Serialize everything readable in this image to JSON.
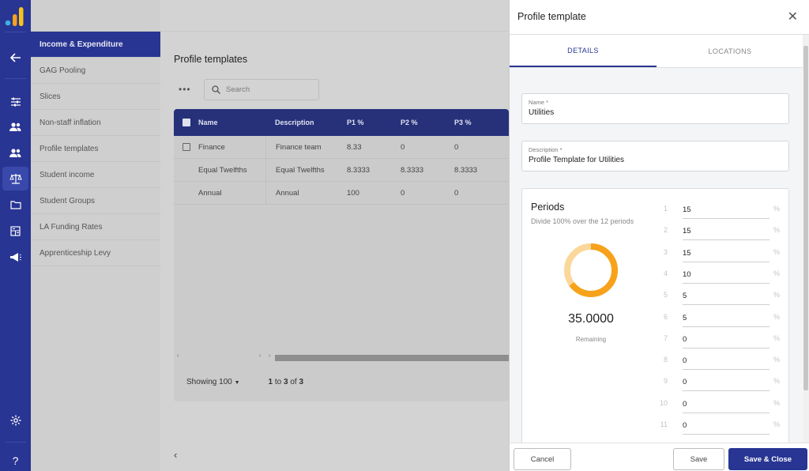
{
  "submenu": {
    "items": [
      "Income & Expenditure",
      "GAG Pooling",
      "Slices",
      "Non-staff inflation",
      "Profile templates",
      "Student income",
      "Student Groups",
      "LA Funding Rates",
      "Apprenticeship Levy"
    ]
  },
  "main": {
    "title": "Profile templates",
    "more": "•••",
    "search_placeholder": "Search",
    "columns": [
      "Name",
      "Description",
      "P1 %",
      "P2 %",
      "P3 %"
    ],
    "rows": [
      [
        "Finance",
        "Finance team",
        "8.33",
        "0",
        "0"
      ],
      [
        "Equal Twelfths",
        "Equal Twelfths",
        "8.3333",
        "8.3333",
        "8.3333"
      ],
      [
        "Annual",
        "Annual",
        "100",
        "0",
        "0"
      ]
    ],
    "footer": {
      "showing": "Showing 100",
      "range_a": "1",
      "range_to": "to",
      "range_b": "3",
      "range_of": "of",
      "range_c": "3"
    }
  },
  "panel": {
    "title": "Profile template",
    "tabs": [
      "DETAILS",
      "LOCATIONS"
    ],
    "name_label": "Name *",
    "name_value": "Utilities",
    "desc_label": "Description *",
    "desc_value": "Profile Template for Utilities",
    "periods_title": "Periods",
    "periods_sub": "Divide 100% over the 12 periods",
    "remaining_value": "35.0000",
    "remaining_label": "Remaining",
    "remaining_fraction": 0.35,
    "period_rows": [
      {
        "n": "1",
        "v": "15"
      },
      {
        "n": "2",
        "v": "15"
      },
      {
        "n": "3",
        "v": "15"
      },
      {
        "n": "4",
        "v": "10"
      },
      {
        "n": "5",
        "v": "5"
      },
      {
        "n": "6",
        "v": "5"
      },
      {
        "n": "7",
        "v": "0"
      },
      {
        "n": "8",
        "v": "0"
      },
      {
        "n": "9",
        "v": "0"
      },
      {
        "n": "10",
        "v": "0"
      },
      {
        "n": "11",
        "v": "0"
      }
    ],
    "pct": "%",
    "buttons": {
      "cancel": "Cancel",
      "save": "Save",
      "save_close": "Save & Close"
    }
  },
  "colors": {
    "brand": "#283593",
    "donut_fill": "#f7a21b",
    "donut_track": "#fbd79a"
  }
}
